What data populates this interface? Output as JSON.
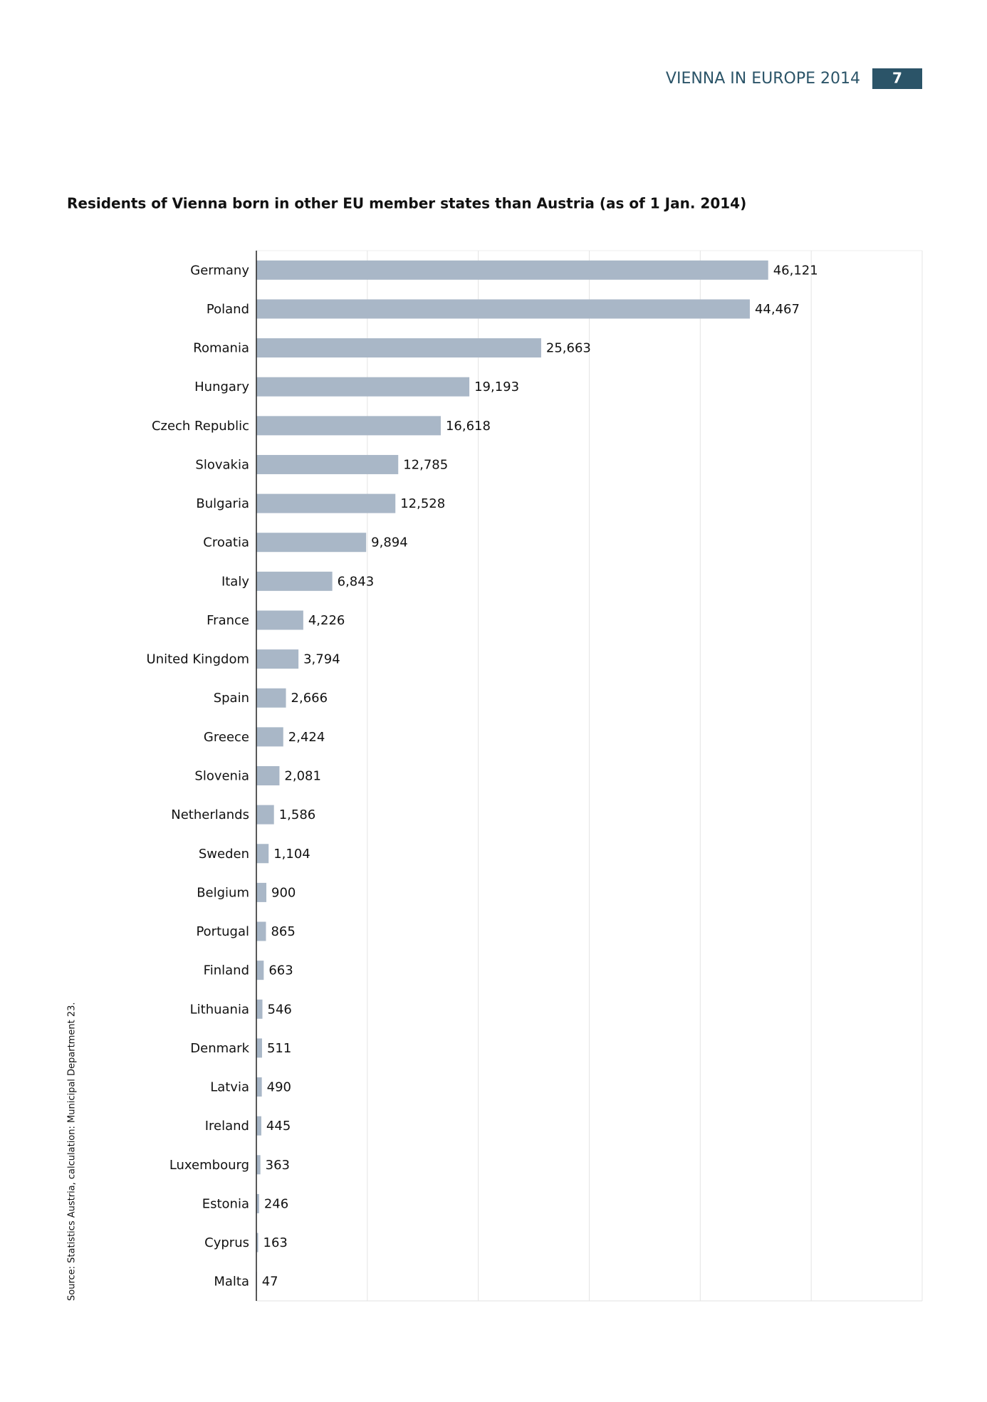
{
  "header": {
    "publication": "VIENNA IN EUROPE 2014",
    "page_number": "7"
  },
  "chart_data": {
    "type": "bar",
    "orientation": "horizontal",
    "title": "Residents of Vienna born in other EU member states than Austria (as of 1 Jan. 2014)",
    "source": "Source: Statistics Austria, calculation: Municipal Department 23.",
    "categories": [
      "Germany",
      "Poland",
      "Romania",
      "Hungary",
      "Czech Republic",
      "Slovakia",
      "Bulgaria",
      "Croatia",
      "Italy",
      "France",
      "United Kingdom",
      "Spain",
      "Greece",
      "Slovenia",
      "Netherlands",
      "Sweden",
      "Belgium",
      "Portugal",
      "Finland",
      "Lithuania",
      "Denmark",
      "Latvia",
      "Ireland",
      "Luxembourg",
      "Estonia",
      "Cyprus",
      "Malta"
    ],
    "values": [
      46121,
      44467,
      25663,
      19193,
      16618,
      12785,
      12528,
      9894,
      6843,
      4226,
      3794,
      2666,
      2424,
      2081,
      1586,
      1104,
      900,
      865,
      663,
      546,
      511,
      490,
      445,
      363,
      246,
      163,
      47
    ],
    "value_labels": [
      "46,121",
      "44,467",
      "25,663",
      "19,193",
      "16,618",
      "12,785",
      "12,528",
      "9,894",
      "6,843",
      "4,226",
      "3,794",
      "2,666",
      "2,424",
      "2,081",
      "1,586",
      "1,104",
      "900",
      "865",
      "663",
      "546",
      "511",
      "490",
      "445",
      "363",
      "246",
      "163",
      "47"
    ],
    "color": "#a9b7c7",
    "xlim": [
      0,
      60000
    ],
    "xticks": [
      10000,
      20000,
      30000,
      40000,
      50000,
      60000
    ],
    "grid": true
  }
}
